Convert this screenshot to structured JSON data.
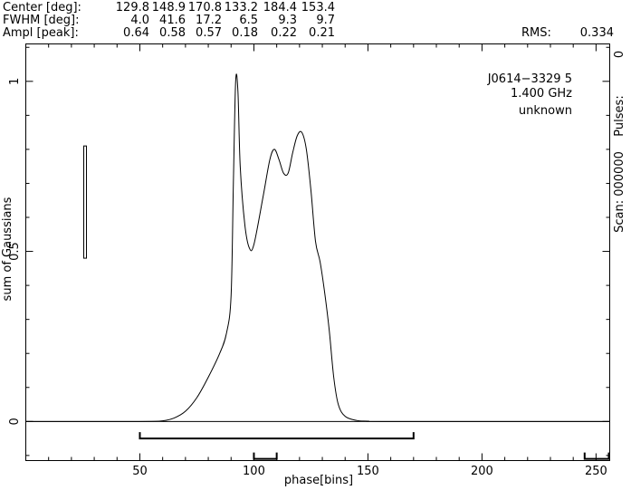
{
  "header": {
    "rows": [
      {
        "label": "Center [deg]:",
        "values": [
          "129.8",
          "148.9",
          "170.8",
          "133.2",
          "184.4",
          "153.4"
        ]
      },
      {
        "label": "FWHM  [deg]:",
        "values": [
          "4.0",
          "41.6",
          "17.2",
          "6.5",
          "9.3",
          "9.7"
        ]
      },
      {
        "label": "Ampl  [peak]:",
        "values": [
          "0.64",
          "0.58",
          "0.57",
          "0.18",
          "0.22",
          "0.21"
        ]
      }
    ],
    "rms_label": "RMS:",
    "rms_value": "0.334"
  },
  "chart_data": {
    "type": "line",
    "xlabel": "phase[bins]",
    "ylabel": "sum of Gaussians",
    "xlim": [
      0,
      256
    ],
    "ylim": [
      -0.115,
      1.11
    ],
    "x_ticks": [
      50,
      100,
      150,
      200,
      250
    ],
    "y_ticks": [
      0,
      0.5,
      1
    ],
    "x_tick_labels": [
      "50",
      "100",
      "150",
      "200",
      "250"
    ],
    "y_tick_labels": [
      "0",
      "0.5",
      "1"
    ],
    "grid": false,
    "annotations": {
      "source": "J0614−3329 5",
      "frequency": "1.400 GHz",
      "status": "unknown"
    },
    "right_axis_text": {
      "pulses": "Pulses:",
      "pulses_value": "0",
      "scan": "Scan: 000000"
    },
    "error_bar": {
      "x": 26,
      "y_low": 0.48,
      "y_high": 0.81
    },
    "ranges": [
      {
        "x_start": 50,
        "x_end": 170,
        "y": -0.05
      },
      {
        "x_start": 100,
        "x_end": 110,
        "y": -0.11
      },
      {
        "x_start": 245,
        "x_end": 256,
        "y": -0.11
      }
    ],
    "series": [
      {
        "x": [
          0,
          50,
          60,
          65,
          70,
          75,
          80,
          85,
          88,
          90,
          91,
          92,
          93,
          94,
          96,
          98,
          100,
          104,
          107,
          109,
          111,
          113,
          115,
          117,
          119,
          121,
          123,
          125,
          127,
          129,
          131,
          133,
          135,
          137,
          140,
          145,
          150,
          160,
          256
        ],
        "y": [
          0,
          0,
          0.002,
          0.01,
          0.03,
          0.07,
          0.13,
          0.2,
          0.26,
          0.37,
          0.7,
          1.0,
          0.97,
          0.75,
          0.58,
          0.51,
          0.52,
          0.66,
          0.77,
          0.8,
          0.77,
          0.73,
          0.73,
          0.79,
          0.84,
          0.85,
          0.8,
          0.68,
          0.53,
          0.47,
          0.38,
          0.27,
          0.13,
          0.05,
          0.015,
          0.003,
          0.001,
          0,
          0
        ]
      }
    ]
  }
}
